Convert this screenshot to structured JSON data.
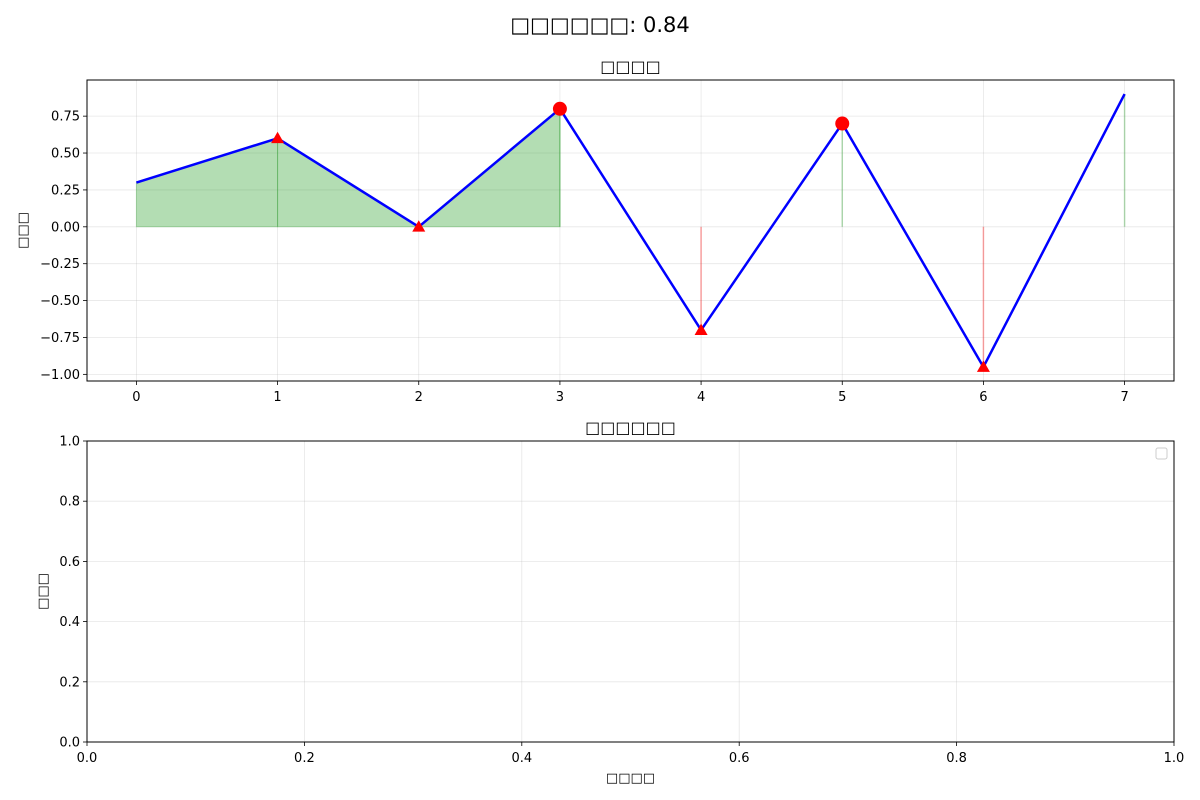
{
  "figure": {
    "suptitle": "□□□□□□: 0.84"
  },
  "chart_data": [
    {
      "type": "line",
      "title": "□□□□",
      "xlabel": "",
      "ylabel": "□□□",
      "xlim": [
        -0.35,
        7.35
      ],
      "ylim": [
        -1.045,
        0.995
      ],
      "xticks": [
        0,
        1,
        2,
        3,
        4,
        5,
        6,
        7
      ],
      "yticks": [
        -1.0,
        -0.75,
        -0.5,
        -0.25,
        0.0,
        0.25,
        0.5,
        0.75
      ],
      "grid": true,
      "series": [
        {
          "x": [
            0,
            1,
            2,
            3,
            4,
            5,
            6,
            7
          ],
          "y": [
            0.3,
            0.6,
            0.0,
            0.8,
            -0.7,
            0.7,
            -0.95,
            0.9
          ],
          "color": "#0000ff"
        }
      ],
      "circle_markers": [
        {
          "x": 3,
          "y": 0.8
        },
        {
          "x": 5,
          "y": 0.7
        }
      ],
      "triangle_markers": [
        {
          "x": 1,
          "y": 0.6
        },
        {
          "x": 2,
          "y": 0.0
        },
        {
          "x": 4,
          "y": -0.7
        },
        {
          "x": 6,
          "y": -0.95
        }
      ],
      "marker_color": "#ff0000",
      "positive_fill_color": "#2ca02c",
      "negative_fill_color": "#ff0000"
    },
    {
      "type": "line",
      "title": "□□□□□□",
      "xlabel": "□□□□",
      "ylabel": "□□□",
      "xlim": [
        0,
        1
      ],
      "ylim": [
        0,
        1
      ],
      "xticks": [
        0.0,
        0.2,
        0.4,
        0.6,
        0.8,
        1.0
      ],
      "yticks": [
        0.0,
        0.2,
        0.4,
        0.6,
        0.8,
        1.0
      ],
      "grid": true,
      "legend": "top-right",
      "series": []
    }
  ]
}
